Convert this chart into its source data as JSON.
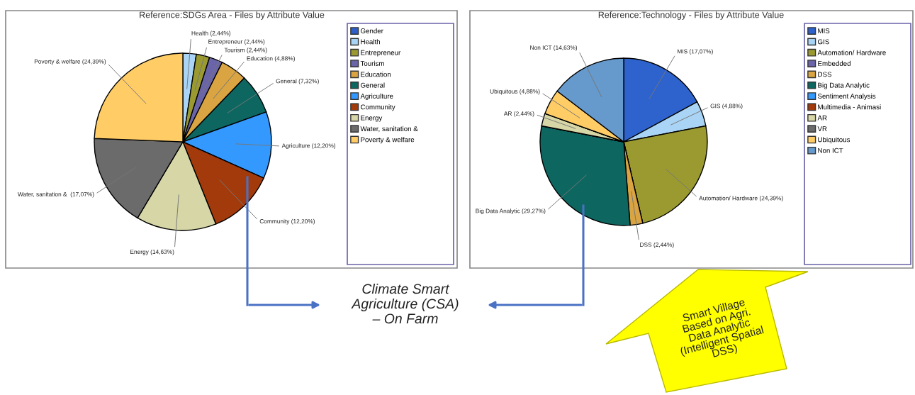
{
  "chart_data": [
    {
      "type": "pie",
      "title": "Reference:SDGs Area - Files by Attribute Value",
      "categories": [
        "Gender",
        "Health",
        "Entrepreneur",
        "Tourism",
        "Education",
        "General",
        "Agriculture",
        "Community",
        "Energy",
        "Water, sanitation &",
        "Poverty & welfare"
      ],
      "values": [
        0,
        2.44,
        2.44,
        2.44,
        4.88,
        7.32,
        12.2,
        12.2,
        14.63,
        17.07,
        24.39
      ],
      "colors": [
        "#2e5fc9",
        "#a9d4f5",
        "#9a9a30",
        "#6a64a8",
        "#d9a441",
        "#0d6660",
        "#3399ff",
        "#a33a0c",
        "#d6d6a6",
        "#6b6b6b",
        "#ffcc66"
      ],
      "value_labels": [
        null,
        "Health (2,44%)",
        "Entrepreneur (2,44%)",
        "Tourism (2,44%)",
        "Education (4,88%)",
        "General (7,32%)",
        "Agriculture (12,20%)",
        "Community (12,20%)",
        "Energy (14,63%)",
        "Water, sanitation &  (17,07%)",
        "Poverty & welfare (24,39%)"
      ],
      "legend": "right",
      "annotations": [
        "Climate Smart\nAgriculture (CSA)\n– On Farm"
      ]
    },
    {
      "type": "pie",
      "title": "Reference:Technology - Files by Attribute Value",
      "categories": [
        "MIS",
        "GIS",
        "Automation/ Hardware",
        "Embedded",
        "DSS",
        "Big Data Analytic",
        "Sentiment Analysis",
        "Multimedia - Animasi",
        "AR",
        "VR",
        "Ubiquitous",
        "Non ICT"
      ],
      "values": [
        17.07,
        4.88,
        24.39,
        0,
        2.44,
        29.27,
        0,
        0,
        2.44,
        0,
        4.88,
        14.63
      ],
      "colors": [
        "#2e62cc",
        "#a9d4f5",
        "#9a9a30",
        "#6a64a8",
        "#d9a441",
        "#0d6660",
        "#3399ff",
        "#a33a0c",
        "#d6d6a6",
        "#6b6b6b",
        "#ffcc66",
        "#6699cc"
      ],
      "value_labels": [
        "MIS (17,07%)",
        "GIS (4,88%)",
        "Automation/ Hardware (24,39%)",
        null,
        "DSS (2,44%)",
        "Big Data Analytic (29,27%)",
        null,
        null,
        "AR (2,44%)",
        null,
        "Ubiquitous (4,88%)",
        "Non ICT (14,63%)"
      ],
      "legend": "right",
      "annotations": [
        "Smart Village\nBased on Agri.\nData Analytic\n(Intelligent Spatial\nDSS)"
      ]
    }
  ]
}
